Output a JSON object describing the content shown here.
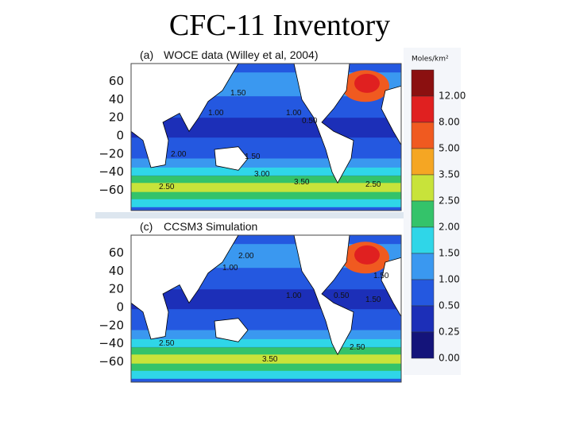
{
  "title": "CFC-11 Inventory",
  "panels": [
    {
      "label": "(a)",
      "title": "WOCE data (Willey et al, 2004)",
      "yticks": [
        "60",
        "40",
        "20",
        "0",
        "−20",
        "−40",
        "−60"
      ],
      "contour_labels": [
        "1.50",
        "1.00",
        "0.50",
        "1.00",
        "2.00",
        "1.50",
        "3.50",
        "2.50",
        "3.00",
        "2.50"
      ]
    },
    {
      "label": "(c)",
      "title": "CCSM3 Simulation",
      "yticks": [
        "60",
        "40",
        "20",
        "0",
        "−20",
        "−40",
        "−60"
      ],
      "contour_labels": [
        "1.00",
        "2.00",
        "1.50",
        "1.00",
        "0.50",
        "2.50",
        "3.50",
        "2.50",
        "1.50"
      ]
    }
  ],
  "colorbar": {
    "unit": "Moles/km²",
    "levels": [
      "12.00",
      "8.00",
      "5.00",
      "3.50",
      "2.50",
      "2.00",
      "1.50",
      "1.00",
      "0.50",
      "0.25",
      "0.00"
    ],
    "colors": [
      "#8b1010",
      "#e02020",
      "#f05a20",
      "#f5a623",
      "#c8e33a",
      "#34c36a",
      "#2fd6e8",
      "#3a98f0",
      "#2458e0",
      "#1c2fb8",
      "#14147a"
    ]
  }
}
